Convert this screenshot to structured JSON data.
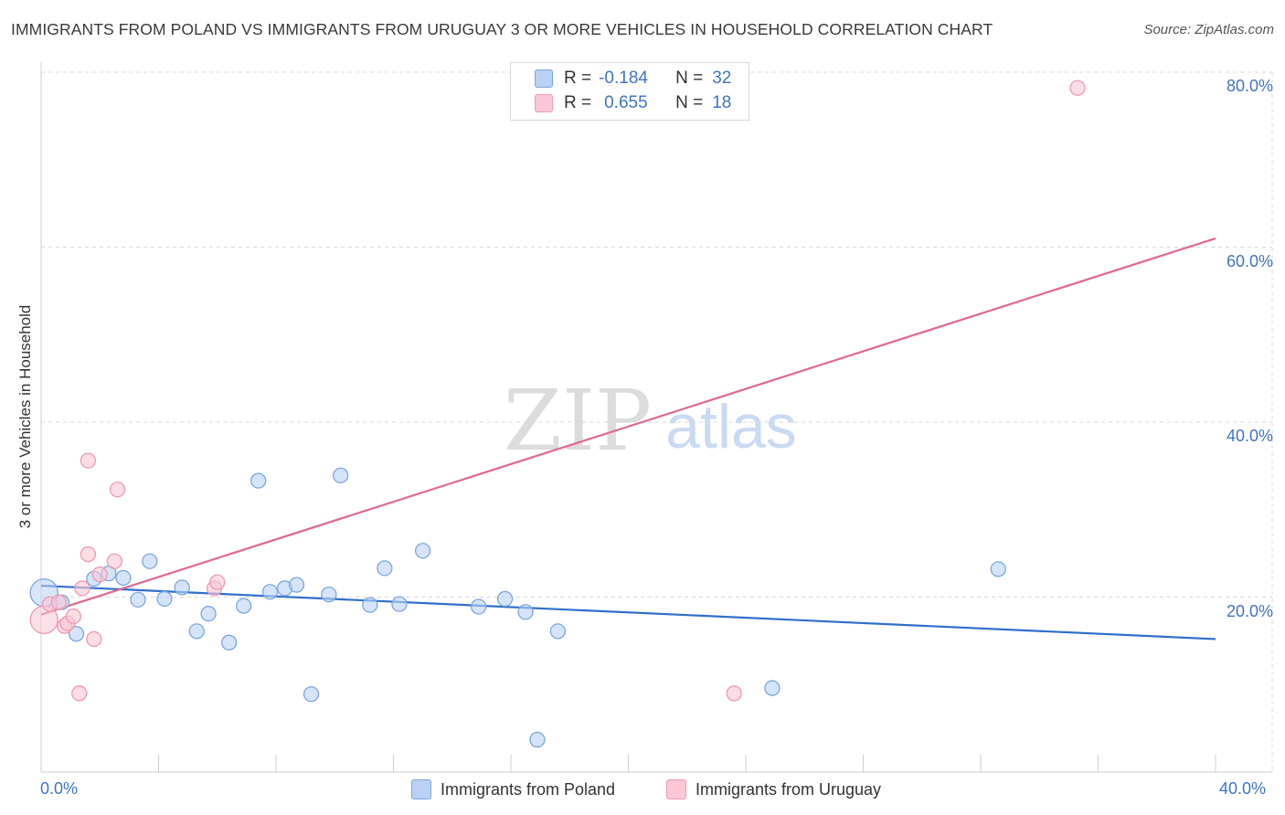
{
  "title": "IMMIGRANTS FROM POLAND VS IMMIGRANTS FROM URUGUAY 3 OR MORE VEHICLES IN HOUSEHOLD CORRELATION CHART",
  "source": "Source: ZipAtlas.com",
  "watermark": {
    "zip": "ZIP",
    "atlas": "atlas"
  },
  "legend": {
    "rows": [
      {
        "r_label": "R =",
        "r_value": "-0.184",
        "n_label": "N =",
        "n_value": "32"
      },
      {
        "r_label": "R =",
        "r_value": "0.655",
        "n_label": "N =",
        "n_value": "18"
      }
    ]
  },
  "bottom_legend": [
    "Immigrants from Poland",
    "Immigrants from Uruguay"
  ],
  "colors": {
    "poland_fill": "#b9d2f3",
    "poland_stroke": "#7ba7df",
    "poland_line": "#2f6fcb",
    "uruguay_fill": "#f9c7d6",
    "uruguay_stroke": "#ee9ab4",
    "uruguay_line": "#e2678f",
    "grid": "#d9d9d9",
    "axis_label": "#3f74c4"
  },
  "chart_data": {
    "type": "scatter",
    "title": "IMMIGRANTS FROM POLAND VS IMMIGRANTS FROM URUGUAY 3 OR MORE VEHICLES IN HOUSEHOLD CORRELATION CHART",
    "xlabel": "",
    "ylabel": "3 or more Vehicles in Household",
    "xlim": [
      0,
      40
    ],
    "ylim": [
      0,
      80
    ],
    "x_tick_labels": [
      "0.0%",
      "40.0%"
    ],
    "y_tick_labels": [
      "20.0%",
      "40.0%",
      "60.0%",
      "80.0%"
    ],
    "y_ticks": [
      20,
      40,
      60,
      80
    ],
    "grid": true,
    "series": [
      {
        "name": "Immigrants from Poland",
        "r": -0.184,
        "n": 32,
        "trendline": {
          "x": [
            0,
            40
          ],
          "y": [
            21.3,
            15.2
          ]
        },
        "points": [
          {
            "x": 0.1,
            "y": 20.5,
            "big": true
          },
          {
            "x": 0.7,
            "y": 19.4
          },
          {
            "x": 1.2,
            "y": 15.8
          },
          {
            "x": 1.8,
            "y": 22.1
          },
          {
            "x": 2.3,
            "y": 22.7
          },
          {
            "x": 2.8,
            "y": 22.2
          },
          {
            "x": 3.3,
            "y": 19.7
          },
          {
            "x": 3.7,
            "y": 24.1
          },
          {
            "x": 4.2,
            "y": 19.8
          },
          {
            "x": 4.8,
            "y": 21.1
          },
          {
            "x": 5.3,
            "y": 16.1
          },
          {
            "x": 5.7,
            "y": 18.1
          },
          {
            "x": 6.4,
            "y": 14.8
          },
          {
            "x": 6.9,
            "y": 19.0
          },
          {
            "x": 7.4,
            "y": 33.3
          },
          {
            "x": 7.8,
            "y": 20.6
          },
          {
            "x": 8.3,
            "y": 21.0
          },
          {
            "x": 8.7,
            "y": 21.4
          },
          {
            "x": 9.2,
            "y": 8.9
          },
          {
            "x": 9.8,
            "y": 20.3
          },
          {
            "x": 10.2,
            "y": 33.9
          },
          {
            "x": 11.2,
            "y": 19.1
          },
          {
            "x": 11.7,
            "y": 23.3
          },
          {
            "x": 12.2,
            "y": 19.2
          },
          {
            "x": 13.0,
            "y": 25.3
          },
          {
            "x": 14.9,
            "y": 18.9
          },
          {
            "x": 15.8,
            "y": 19.8
          },
          {
            "x": 16.5,
            "y": 18.3
          },
          {
            "x": 16.9,
            "y": 3.7
          },
          {
            "x": 17.6,
            "y": 16.1
          },
          {
            "x": 24.9,
            "y": 9.6
          },
          {
            "x": 32.6,
            "y": 23.2
          }
        ]
      },
      {
        "name": "Immigrants from Uruguay",
        "r": 0.655,
        "n": 18,
        "trendline": {
          "x": [
            0,
            40
          ],
          "y": [
            18.0,
            61.0
          ]
        },
        "points": [
          {
            "x": 0.1,
            "y": 17.4,
            "big": true
          },
          {
            "x": 0.3,
            "y": 19.2
          },
          {
            "x": 0.6,
            "y": 19.4
          },
          {
            "x": 0.8,
            "y": 16.7
          },
          {
            "x": 0.9,
            "y": 17.0
          },
          {
            "x": 1.4,
            "y": 21.0
          },
          {
            "x": 1.1,
            "y": 17.8
          },
          {
            "x": 1.3,
            "y": 9.0
          },
          {
            "x": 1.6,
            "y": 35.6
          },
          {
            "x": 1.6,
            "y": 24.9
          },
          {
            "x": 1.8,
            "y": 15.2
          },
          {
            "x": 2.0,
            "y": 22.6
          },
          {
            "x": 2.5,
            "y": 24.1
          },
          {
            "x": 2.6,
            "y": 32.3
          },
          {
            "x": 5.9,
            "y": 21.0
          },
          {
            "x": 6.0,
            "y": 21.7
          },
          {
            "x": 23.6,
            "y": 9.0
          },
          {
            "x": 35.3,
            "y": 78.2
          }
        ]
      }
    ]
  }
}
